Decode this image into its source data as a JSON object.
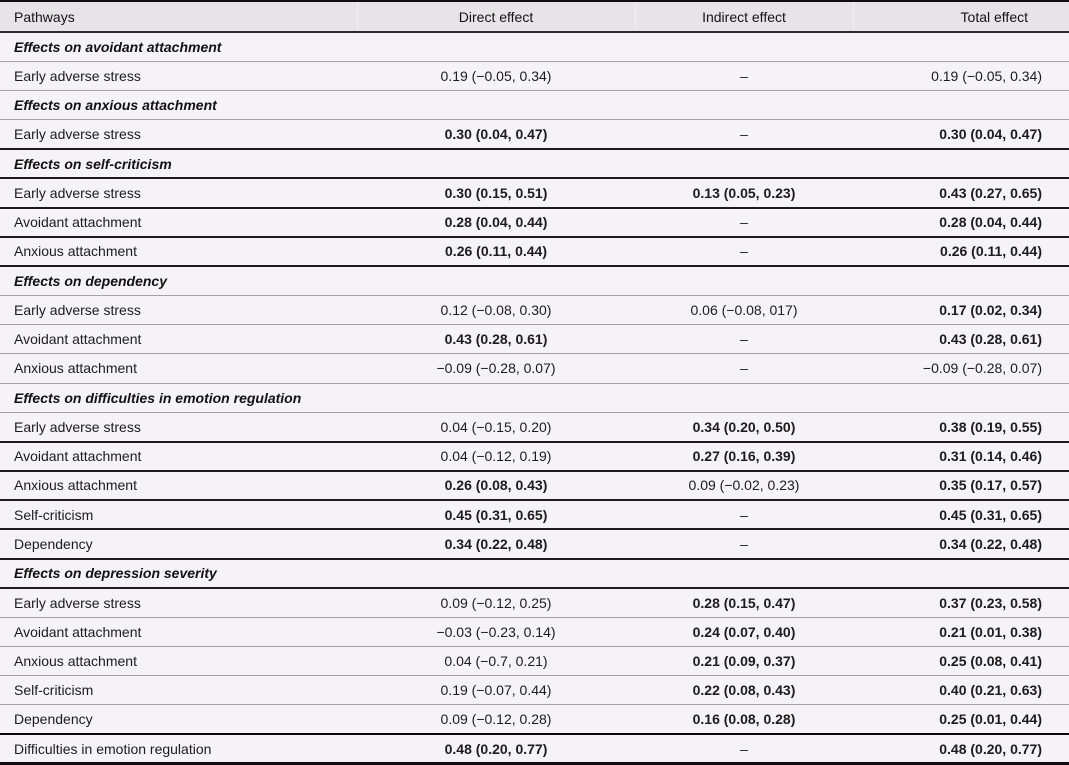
{
  "colors": {
    "header_bg": "#e7e4e7",
    "row_bg": "#f5f2f8",
    "rule_thin": "#a5a1a7",
    "rule_dark": "#1c1c1c",
    "frame": "#0f0d10"
  },
  "table": {
    "columns": [
      "Pathways",
      "Direct effect",
      "Indirect effect",
      "Total effect"
    ],
    "rows": [
      {
        "type": "section",
        "label": "Effects on avoidant attachment",
        "rule": "thin"
      },
      {
        "type": "data",
        "label": "Early adverse stress",
        "rule": "thin",
        "direct": {
          "text": "0.19 (−0.05, 0.34)",
          "bold": false
        },
        "indirect": {
          "text": "–",
          "bold": false
        },
        "total": {
          "text": "0.19 (−0.05, 0.34)",
          "bold": false
        }
      },
      {
        "type": "section",
        "label": "Effects on anxious attachment",
        "rule": "thin"
      },
      {
        "type": "data",
        "label": "Early adverse stress",
        "rule": "dark",
        "direct": {
          "text": "0.30 (0.04, 0.47)",
          "bold": true
        },
        "indirect": {
          "text": "–",
          "bold": false
        },
        "total": {
          "text": "0.30 (0.04, 0.47)",
          "bold": true
        }
      },
      {
        "type": "section",
        "label": "Effects on self-criticism",
        "rule": "dark"
      },
      {
        "type": "data",
        "label": "Early adverse stress",
        "rule": "dark",
        "direct": {
          "text": "0.30 (0.15, 0.51)",
          "bold": true
        },
        "indirect": {
          "text": "0.13 (0.05, 0.23)",
          "bold": true
        },
        "total": {
          "text": "0.43 (0.27, 0.65)",
          "bold": true
        }
      },
      {
        "type": "data",
        "label": "Avoidant attachment",
        "rule": "dark",
        "direct": {
          "text": "0.28 (0.04, 0.44)",
          "bold": true
        },
        "indirect": {
          "text": "–",
          "bold": false
        },
        "total": {
          "text": "0.28 (0.04, 0.44)",
          "bold": true
        }
      },
      {
        "type": "data",
        "label": "Anxious attachment",
        "rule": "dark",
        "direct": {
          "text": "0.26 (0.11, 0.44)",
          "bold": true
        },
        "indirect": {
          "text": "–",
          "bold": false
        },
        "total": {
          "text": "0.26 (0.11, 0.44)",
          "bold": true
        }
      },
      {
        "type": "section",
        "label": "Effects on dependency",
        "rule": "thin"
      },
      {
        "type": "data",
        "label": "Early adverse stress",
        "rule": "thin",
        "direct": {
          "text": "0.12 (−0.08, 0.30)",
          "bold": false
        },
        "indirect": {
          "text": "0.06 (−0.08, 017)",
          "bold": false
        },
        "total": {
          "text": "0.17 (0.02, 0.34)",
          "bold": true
        }
      },
      {
        "type": "data",
        "label": "Avoidant attachment",
        "rule": "thin",
        "direct": {
          "text": "0.43 (0.28, 0.61)",
          "bold": true
        },
        "indirect": {
          "text": "–",
          "bold": false
        },
        "total": {
          "text": "0.43 (0.28, 0.61)",
          "bold": true
        }
      },
      {
        "type": "data",
        "label": "Anxious attachment",
        "rule": "thin",
        "direct": {
          "text": "−0.09 (−0.28, 0.07)",
          "bold": false
        },
        "indirect": {
          "text": "–",
          "bold": false
        },
        "total": {
          "text": "−0.09 (−0.28, 0.07)",
          "bold": false
        }
      },
      {
        "type": "section",
        "label": "Effects on difficulties in emotion regulation",
        "rule": "thin"
      },
      {
        "type": "data",
        "label": "Early adverse stress",
        "rule": "dark",
        "direct": {
          "text": "0.04 (−0.15, 0.20)",
          "bold": false
        },
        "indirect": {
          "text": "0.34 (0.20, 0.50)",
          "bold": true
        },
        "total": {
          "text": "0.38 (0.19, 0.55)",
          "bold": true
        }
      },
      {
        "type": "data",
        "label": "Avoidant attachment",
        "rule": "dark",
        "direct": {
          "text": "0.04 (−0.12, 0.19)",
          "bold": false
        },
        "indirect": {
          "text": "0.27 (0.16, 0.39)",
          "bold": true
        },
        "total": {
          "text": "0.31 (0.14, 0.46)",
          "bold": true
        }
      },
      {
        "type": "data",
        "label": "Anxious attachment",
        "rule": "dark",
        "direct": {
          "text": "0.26 (0.08, 0.43)",
          "bold": true
        },
        "indirect": {
          "text": "0.09 (−0.02, 0.23)",
          "bold": false
        },
        "total": {
          "text": "0.35 (0.17, 0.57)",
          "bold": true
        }
      },
      {
        "type": "data",
        "label": "Self-criticism",
        "rule": "dark",
        "direct": {
          "text": "0.45 (0.31, 0.65)",
          "bold": true
        },
        "indirect": {
          "text": "–",
          "bold": false
        },
        "total": {
          "text": "0.45 (0.31, 0.65)",
          "bold": true
        }
      },
      {
        "type": "data",
        "label": "Dependency",
        "rule": "dark",
        "direct": {
          "text": "0.34 (0.22, 0.48)",
          "bold": true
        },
        "indirect": {
          "text": "–",
          "bold": false
        },
        "total": {
          "text": "0.34 (0.22, 0.48)",
          "bold": true
        }
      },
      {
        "type": "section",
        "label": "Effects on depression severity",
        "rule": "dark"
      },
      {
        "type": "data",
        "label": "Early adverse stress",
        "rule": "thin",
        "direct": {
          "text": "0.09 (−0.12, 0.25)",
          "bold": false
        },
        "indirect": {
          "text": "0.28 (0.15, 0.47)",
          "bold": true
        },
        "total": {
          "text": "0.37 (0.23, 0.58)",
          "bold": true
        }
      },
      {
        "type": "data",
        "label": "Avoidant attachment",
        "rule": "thin",
        "direct": {
          "text": "−0.03 (−0.23, 0.14)",
          "bold": false
        },
        "indirect": {
          "text": "0.24 (0.07, 0.40)",
          "bold": true
        },
        "total": {
          "text": "0.21 (0.01, 0.38)",
          "bold": true
        }
      },
      {
        "type": "data",
        "label": "Anxious attachment",
        "rule": "thin",
        "direct": {
          "text": "0.04 (−0.7, 0.21)",
          "bold": false
        },
        "indirect": {
          "text": "0.21 (0.09, 0.37)",
          "bold": true
        },
        "total": {
          "text": "0.25 (0.08, 0.41)",
          "bold": true
        }
      },
      {
        "type": "data",
        "label": "Self-criticism",
        "rule": "thin",
        "direct": {
          "text": "0.19 (−0.07, 0.44)",
          "bold": false
        },
        "indirect": {
          "text": "0.22 (0.08, 0.43)",
          "bold": true
        },
        "total": {
          "text": "0.40 (0.21, 0.63)",
          "bold": true
        }
      },
      {
        "type": "data",
        "label": "Dependency",
        "rule": "thick",
        "direct": {
          "text": "0.09 (−0.12, 0.28)",
          "bold": false
        },
        "indirect": {
          "text": "0.16 (0.08, 0.28)",
          "bold": true
        },
        "total": {
          "text": "0.25 (0.01, 0.44)",
          "bold": true
        }
      },
      {
        "type": "data",
        "label": "Difficulties in emotion regulation",
        "rule": "none",
        "direct": {
          "text": "0.48 (0.20, 0.77)",
          "bold": true
        },
        "indirect": {
          "text": "–",
          "bold": false
        },
        "total": {
          "text": "0.48 (0.20, 0.77)",
          "bold": true
        }
      }
    ]
  }
}
